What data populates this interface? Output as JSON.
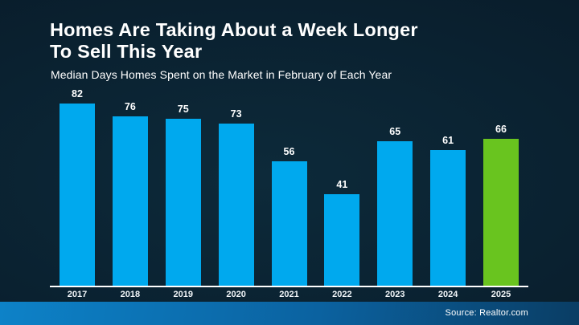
{
  "slide": {
    "title_line1": "Homes Are Taking About a Week Longer",
    "title_line2": "To Sell This Year",
    "subtitle": "Median Days Homes Spent on the Market in February of Each Year",
    "source": "Source: Realtor.com"
  },
  "colors": {
    "bar_blue": "#00A9EE",
    "bar_green": "#69C41F",
    "background_dark": "#0A2130",
    "axis_line": "#FFFFFF",
    "footer_gradient_left": "#0D82C8",
    "footer_gradient_right": "#0A3D64",
    "text": "#FFFFFF"
  },
  "chart_data": {
    "type": "bar",
    "title": "Median Days Homes Spent on the Market in February of Each Year",
    "categories": [
      "2017",
      "2018",
      "2019",
      "2020",
      "2021",
      "2022",
      "2023",
      "2024",
      "2025"
    ],
    "values": [
      82,
      76,
      75,
      73,
      56,
      41,
      65,
      61,
      66
    ],
    "bar_color": "#00A9EE",
    "highlight_index": 8,
    "highlight_color": "#69C41F",
    "data_labels": true,
    "grid": false,
    "legend": false,
    "xlabel": "",
    "ylabel": "",
    "ylim": [
      0,
      89
    ]
  }
}
